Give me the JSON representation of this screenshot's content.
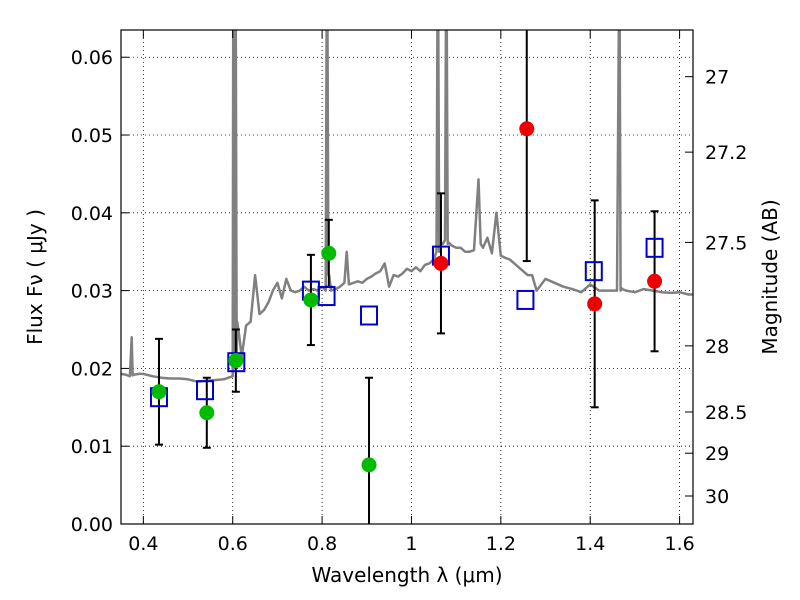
{
  "chart_data": {
    "type": "scatter",
    "xlabel": "Wavelength  λ (μm)",
    "ylabel": "Flux  Fν  ( μJy )",
    "ylabel_right": "Magnitude (AB)",
    "xlim": [
      0.35,
      1.63
    ],
    "ylim": [
      0.0,
      0.0635
    ],
    "grid": true,
    "xticks": [
      0.4,
      0.6,
      0.8,
      1.0,
      1.2,
      1.4,
      1.6
    ],
    "xtick_labels": [
      "0.4",
      "0.6",
      "0.8",
      "1",
      "1.2",
      "1.4",
      "1.6"
    ],
    "yticks": [
      0.0,
      0.01,
      0.02,
      0.03,
      0.04,
      0.05,
      0.06
    ],
    "ytick_labels": [
      "0.00",
      "0.01",
      "0.02",
      "0.03",
      "0.04",
      "0.05",
      "0.06"
    ],
    "right_ticks": [
      {
        "label": "27",
        "flux": 0.0575
      },
      {
        "label": "27.2",
        "flux": 0.0478
      },
      {
        "label": "27.5",
        "flux": 0.0362
      },
      {
        "label": "28",
        "flux": 0.0229
      },
      {
        "label": "28.5",
        "flux": 0.0144
      },
      {
        "label": "29",
        "flux": 0.0091
      },
      {
        "label": "30",
        "flux": 0.0036
      }
    ],
    "colors": {
      "model": "#808080",
      "green": "#00bb00",
      "red": "#ee0000",
      "square": "#0000cc",
      "errorbar": "#000000"
    },
    "series": [
      {
        "name": "model-spectrum",
        "type": "line",
        "x": [
          0.35,
          0.36,
          0.37,
          0.374,
          0.376,
          0.38,
          0.39,
          0.4,
          0.42,
          0.44,
          0.46,
          0.48,
          0.5,
          0.52,
          0.54,
          0.56,
          0.58,
          0.6,
          0.601,
          0.603,
          0.607,
          0.609,
          0.61,
          0.615,
          0.62,
          0.63,
          0.64,
          0.65,
          0.66,
          0.67,
          0.68,
          0.69,
          0.7,
          0.71,
          0.72,
          0.73,
          0.74,
          0.75,
          0.76,
          0.77,
          0.78,
          0.79,
          0.8,
          0.808,
          0.81,
          0.812,
          0.814,
          0.816,
          0.82,
          0.83,
          0.84,
          0.85,
          0.855,
          0.86,
          0.87,
          0.88,
          0.89,
          0.9,
          0.91,
          0.92,
          0.93,
          0.94,
          0.95,
          0.96,
          0.97,
          0.98,
          0.99,
          1.0,
          1.01,
          1.02,
          1.03,
          1.04,
          1.05,
          1.056,
          1.058,
          1.06,
          1.062,
          1.064,
          1.07,
          1.075,
          1.077,
          1.079,
          1.081,
          1.083,
          1.09,
          1.1,
          1.11,
          1.12,
          1.13,
          1.14,
          1.15,
          1.155,
          1.16,
          1.17,
          1.18,
          1.19,
          1.2,
          1.21,
          1.22,
          1.23,
          1.24,
          1.25,
          1.26,
          1.27,
          1.28,
          1.3,
          1.32,
          1.34,
          1.36,
          1.38,
          1.4,
          1.42,
          1.44,
          1.46,
          1.464,
          1.466,
          1.468,
          1.47,
          1.472,
          1.48,
          1.5,
          1.52,
          1.54,
          1.56,
          1.58,
          1.6,
          1.62,
          1.63
        ],
        "y": [
          0.0193,
          0.0192,
          0.019,
          0.024,
          0.0191,
          0.0192,
          0.0193,
          0.0193,
          0.019,
          0.0188,
          0.0187,
          0.0187,
          0.0186,
          0.0183,
          0.0184,
          0.0185,
          0.0186,
          0.019,
          0.0635,
          0.02,
          0.0635,
          0.021,
          0.026,
          0.024,
          0.0215,
          0.0255,
          0.026,
          0.032,
          0.027,
          0.0275,
          0.0285,
          0.03,
          0.031,
          0.029,
          0.0315,
          0.03,
          0.0298,
          0.03,
          0.0305,
          0.03,
          0.0302,
          0.03,
          0.0305,
          0.03,
          0.0635,
          0.0635,
          0.032,
          0.032,
          0.03,
          0.0302,
          0.0305,
          0.031,
          0.035,
          0.0308,
          0.031,
          0.0312,
          0.031,
          0.0315,
          0.0318,
          0.0322,
          0.0325,
          0.0335,
          0.0305,
          0.032,
          0.0318,
          0.0322,
          0.0328,
          0.0325,
          0.033,
          0.0325,
          0.0333,
          0.0335,
          0.034,
          0.035,
          0.0635,
          0.0635,
          0.035,
          0.036,
          0.036,
          0.0365,
          0.0635,
          0.0635,
          0.036,
          0.0362,
          0.0358,
          0.0355,
          0.0355,
          0.035,
          0.035,
          0.0352,
          0.0443,
          0.036,
          0.0355,
          0.0368,
          0.0348,
          0.04,
          0.0345,
          0.0342,
          0.034,
          0.0335,
          0.033,
          0.0325,
          0.032,
          0.032,
          0.03,
          0.0315,
          0.031,
          0.0305,
          0.0302,
          0.0298,
          0.0308,
          0.03,
          0.03,
          0.03,
          0.0635,
          0.0635,
          0.03,
          0.0303,
          0.0302,
          0.03,
          0.0298,
          0.0302,
          0.03,
          0.0298,
          0.0297,
          0.0298,
          0.0295,
          0.0295
        ]
      },
      {
        "name": "green-points",
        "type": "scatter",
        "points": [
          {
            "x": 0.435,
            "y": 0.017,
            "err": 0.0068
          },
          {
            "x": 0.542,
            "y": 0.0143,
            "err": 0.0045
          },
          {
            "x": 0.607,
            "y": 0.021,
            "err": 0.004
          },
          {
            "x": 0.775,
            "y": 0.0288,
            "err": 0.0058
          },
          {
            "x": 0.815,
            "y": 0.0348,
            "err": 0.0043
          },
          {
            "x": 0.905,
            "y": 0.0076,
            "err": 0.0112
          }
        ]
      },
      {
        "name": "red-points",
        "type": "scatter",
        "points": [
          {
            "x": 1.066,
            "y": 0.0335,
            "err": 0.009
          },
          {
            "x": 1.258,
            "y": 0.0508,
            "err": 0.017
          },
          {
            "x": 1.41,
            "y": 0.0283,
            "err": 0.0133
          },
          {
            "x": 1.544,
            "y": 0.0312,
            "err": 0.009
          }
        ]
      },
      {
        "name": "model-photometry",
        "type": "scatter",
        "points": [
          {
            "x": 0.435,
            "y": 0.0163
          },
          {
            "x": 0.538,
            "y": 0.0172
          },
          {
            "x": 0.608,
            "y": 0.0208
          },
          {
            "x": 0.775,
            "y": 0.03
          },
          {
            "x": 0.81,
            "y": 0.0293
          },
          {
            "x": 0.905,
            "y": 0.0268
          },
          {
            "x": 1.066,
            "y": 0.0345
          },
          {
            "x": 1.255,
            "y": 0.0288
          },
          {
            "x": 1.408,
            "y": 0.0325
          },
          {
            "x": 1.544,
            "y": 0.0355
          }
        ]
      }
    ]
  }
}
